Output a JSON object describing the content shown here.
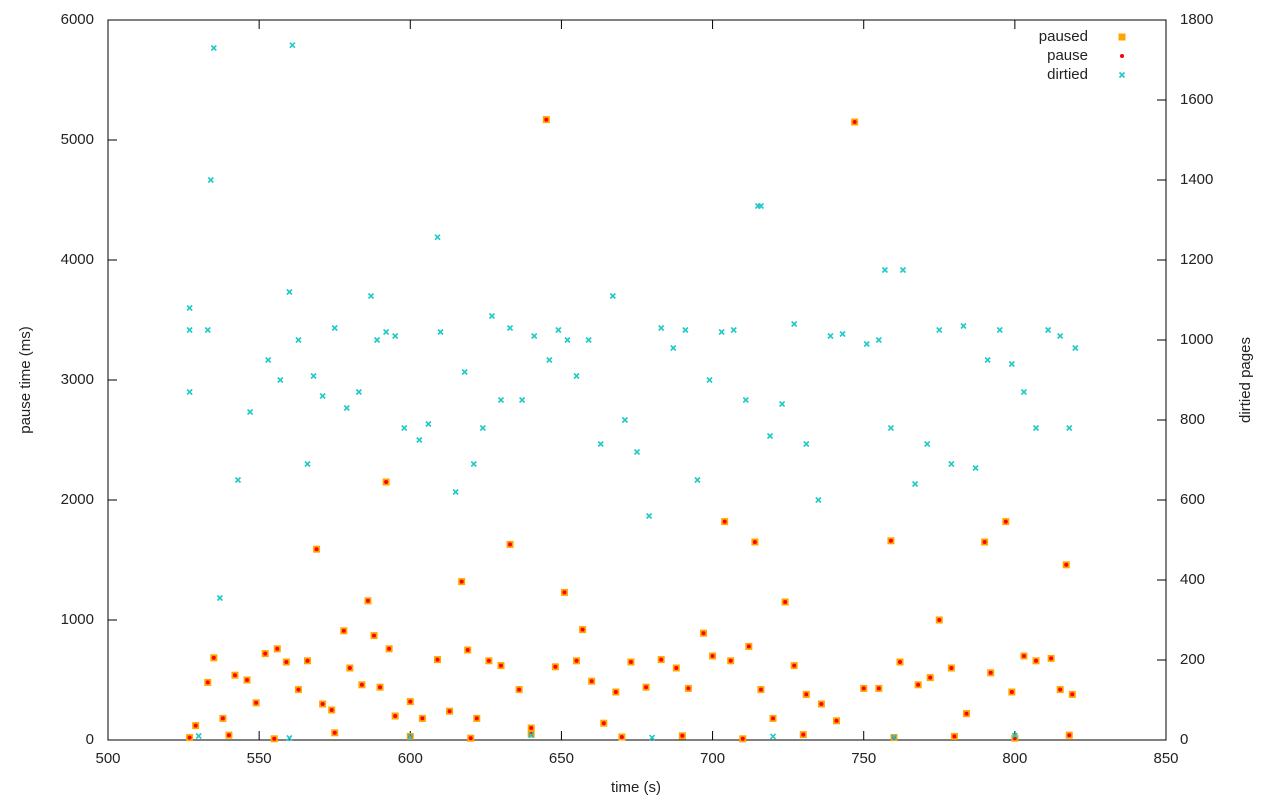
{
  "chart_data": {
    "type": "scatter",
    "xlabel": "time (s)",
    "ylabel": "pause time (ms)",
    "y2label": "dirtied pages",
    "xlim": [
      500,
      850
    ],
    "xticks": [
      500,
      550,
      600,
      650,
      700,
      750,
      800,
      850
    ],
    "ylim": [
      0,
      6000
    ],
    "yticks": [
      0,
      1000,
      2000,
      3000,
      4000,
      5000,
      6000
    ],
    "y2lim": [
      0,
      1800
    ],
    "y2ticks": [
      0,
      200,
      400,
      600,
      800,
      1000,
      1200,
      1400,
      1600,
      1800
    ],
    "grid": false,
    "legend": "top-right",
    "series": [
      {
        "name": "paused",
        "color": "#ffa500",
        "marker": "square",
        "x": [
          645,
          747,
          592,
          569,
          633,
          704,
          714,
          797,
          759,
          790,
          817,
          617,
          651,
          724,
          586,
          775,
          535,
          578,
          588,
          657,
          697,
          712,
          593,
          529,
          533,
          538,
          542,
          546,
          549,
          552,
          556,
          559,
          563,
          566,
          571,
          574,
          580,
          584,
          590,
          595,
          600,
          604,
          609,
          613,
          619,
          622,
          626,
          630,
          636,
          640,
          648,
          655,
          660,
          664,
          668,
          673,
          678,
          683,
          688,
          692,
          700,
          706,
          716,
          720,
          727,
          731,
          736,
          741,
          750,
          755,
          762,
          768,
          772,
          779,
          784,
          792,
          799,
          803,
          807,
          812,
          815,
          819,
          527,
          540,
          555,
          575,
          600,
          620,
          640,
          670,
          690,
          710,
          730,
          760,
          780,
          800,
          818
        ],
        "values": [
          5170,
          5150,
          2150,
          1590,
          1630,
          1820,
          1650,
          1820,
          1660,
          1650,
          1460,
          1320,
          1230,
          1150,
          1160,
          1000,
          685,
          910,
          870,
          920,
          890,
          780,
          760,
          120,
          480,
          180,
          540,
          500,
          310,
          720,
          760,
          650,
          420,
          660,
          300,
          250,
          600,
          460,
          440,
          200,
          320,
          180,
          670,
          240,
          750,
          180,
          660,
          620,
          420,
          100,
          610,
          660,
          490,
          140,
          400,
          650,
          440,
          670,
          600,
          430,
          700,
          660,
          420,
          180,
          620,
          380,
          300,
          160,
          430,
          430,
          650,
          460,
          520,
          600,
          220,
          560,
          400,
          700,
          660,
          680,
          420,
          380,
          20,
          40,
          10,
          60,
          30,
          15,
          50,
          25,
          35,
          10,
          45,
          20,
          30,
          15,
          40
        ]
      },
      {
        "name": "pause",
        "color": "#ff0000",
        "marker": "dot",
        "x": [
          645,
          747,
          592,
          569,
          633,
          704,
          714,
          797,
          759,
          790,
          817,
          617,
          651,
          724,
          586,
          775,
          535,
          578,
          588,
          657,
          697,
          712,
          593,
          529,
          533,
          538,
          542,
          546,
          549,
          552,
          556,
          559,
          563,
          566,
          571,
          574,
          580,
          584,
          590,
          595,
          600,
          604,
          609,
          613,
          619,
          622,
          626,
          630,
          636,
          640,
          648,
          655,
          660,
          664,
          668,
          673,
          678,
          683,
          688,
          692,
          700,
          706,
          716,
          720,
          727,
          731,
          736,
          741,
          750,
          755,
          762,
          768,
          772,
          779,
          784,
          792,
          799,
          803,
          807,
          812,
          815,
          819,
          527,
          540,
          555,
          575,
          600,
          620,
          640,
          670,
          690,
          710,
          730,
          760,
          780,
          800,
          818
        ],
        "values": [
          5170,
          5150,
          2150,
          1590,
          1630,
          1820,
          1650,
          1820,
          1660,
          1650,
          1460,
          1320,
          1230,
          1150,
          1160,
          1000,
          685,
          910,
          870,
          920,
          890,
          780,
          760,
          120,
          480,
          180,
          540,
          500,
          310,
          720,
          760,
          650,
          420,
          660,
          300,
          250,
          600,
          460,
          440,
          200,
          320,
          180,
          670,
          240,
          750,
          180,
          660,
          620,
          420,
          100,
          610,
          660,
          490,
          140,
          400,
          650,
          440,
          670,
          600,
          430,
          700,
          660,
          420,
          180,
          620,
          380,
          300,
          160,
          430,
          430,
          650,
          460,
          520,
          600,
          220,
          560,
          400,
          700,
          660,
          680,
          420,
          380,
          20,
          40,
          10,
          60,
          30,
          15,
          50,
          25,
          35,
          10,
          45,
          20,
          30,
          15,
          40
        ]
      },
      {
        "name": "dirtied",
        "color": "#20c8c8",
        "marker": "cross",
        "axis": "y2",
        "x": [
          535,
          561,
          534,
          609,
          716,
          757,
          537,
          527,
          527,
          527,
          533,
          543,
          547,
          553,
          557,
          560,
          563,
          566,
          568,
          571,
          575,
          579,
          583,
          587,
          589,
          592,
          595,
          598,
          603,
          606,
          610,
          615,
          618,
          621,
          624,
          627,
          630,
          633,
          637,
          641,
          646,
          649,
          652,
          655,
          659,
          663,
          667,
          671,
          675,
          679,
          683,
          687,
          691,
          695,
          699,
          703,
          707,
          711,
          715,
          719,
          723,
          727,
          731,
          735,
          739,
          743,
          751,
          755,
          759,
          763,
          767,
          771,
          775,
          779,
          783,
          787,
          791,
          795,
          799,
          803,
          807,
          811,
          815,
          818,
          820,
          530,
          560,
          600,
          640,
          680,
          720,
          760,
          800
        ],
        "values": [
          1730,
          1737,
          1400,
          1257,
          1335,
          1175,
          355,
          1080,
          1025,
          870,
          1025,
          650,
          820,
          950,
          900,
          1120,
          1000,
          690,
          910,
          860,
          1030,
          830,
          870,
          1110,
          1000,
          1020,
          1010,
          780,
          750,
          790,
          1020,
          620,
          920,
          690,
          780,
          1060,
          850,
          1030,
          850,
          1010,
          950,
          1025,
          1000,
          910,
          1000,
          740,
          1110,
          800,
          720,
          560,
          1030,
          980,
          1025,
          650,
          900,
          1020,
          1025,
          850,
          1335,
          760,
          840,
          1040,
          740,
          600,
          1010,
          1015,
          990,
          1000,
          780,
          1175,
          640,
          740,
          1025,
          690,
          1035,
          680,
          950,
          1025,
          940,
          870,
          780,
          1025,
          1010,
          780,
          980,
          10,
          5,
          8,
          12,
          6,
          9,
          7,
          11
        ]
      }
    ]
  }
}
